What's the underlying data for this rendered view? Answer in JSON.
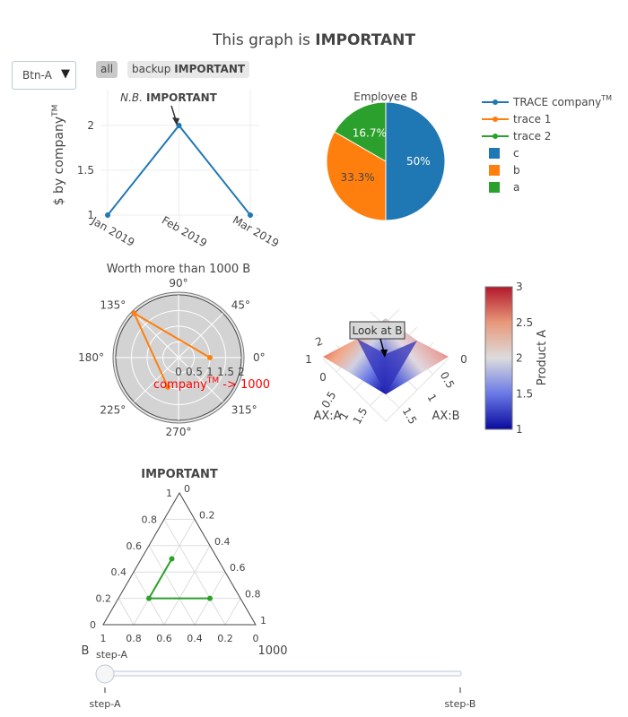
{
  "title": {
    "prefix": "This graph is ",
    "bold": "IMPORTANT"
  },
  "controls": {
    "dropdown_label": "Btn-A",
    "dropdown_arrow": "▼",
    "button_all": "all",
    "button_backup_prefix": "backup ",
    "button_backup_bold": "IMPORTANT"
  },
  "legend": {
    "items": [
      {
        "name": "TRACE company",
        "sup": "TM",
        "kind": "line",
        "color": "#1f77b4"
      },
      {
        "name": "trace 1",
        "kind": "line",
        "color": "#ff7f0e"
      },
      {
        "name": "trace 2",
        "kind": "line",
        "color": "#2ca02c"
      },
      {
        "name": "c",
        "kind": "square",
        "color": "#1f77b4"
      },
      {
        "name": "b",
        "kind": "square",
        "color": "#ff7f0e"
      },
      {
        "name": "a",
        "kind": "square",
        "color": "#2ca02c"
      }
    ]
  },
  "colors": {
    "blue": "#1f77b4",
    "orange": "#ff7f0e",
    "green": "#2ca02c",
    "red_annotation": "#ff0000"
  },
  "slider": {
    "steps": [
      "step-A",
      "step-B"
    ],
    "current_label": "step-A",
    "active_index": 0
  },
  "chart_data": [
    {
      "type": "line",
      "x": [
        "Jan 2019",
        "Feb 2019",
        "Mar 2019"
      ],
      "y": [
        1,
        2,
        1
      ],
      "ylabel": "$ by company",
      "ylabel_sup": "TM",
      "ylim": [
        0.9,
        2.4
      ],
      "yticks": [
        1,
        1.5,
        2
      ],
      "ytick_labels": [
        "1",
        "1.5",
        "2"
      ],
      "xtick_labels": [
        "Jan 2019",
        "Feb 2019",
        "Mar 2019"
      ],
      "grid": true,
      "annotation": {
        "italic": "N.B.",
        "bold": "IMPORTANT",
        "at_x": "Feb 2019",
        "at_y": 2
      }
    },
    {
      "type": "pie",
      "title": "Employee B",
      "labels": [
        "c",
        "b",
        "a"
      ],
      "values": [
        3,
        2,
        1
      ],
      "percent_labels": [
        "50%",
        "33.3%",
        "16.7%"
      ]
    },
    {
      "type": "polar",
      "title": "Worth more than 1000 B",
      "r": [
        1,
        2,
        1
      ],
      "theta_deg": [
        0,
        135,
        250
      ],
      "angular_ticks": [
        "0°",
        "45°",
        "90°",
        "135°",
        "180°",
        "225°",
        "270°",
        "315°"
      ],
      "radial_ticks": [
        "0",
        "0.5",
        "1",
        "1.5",
        "2"
      ],
      "radial_range": [
        0,
        2
      ],
      "annotation": {
        "text": "company",
        "sup": "TM",
        "suffix": " -> 1000"
      }
    },
    {
      "type": "surface",
      "z": [
        [
          1,
          2,
          1
        ],
        [
          2,
          1,
          2
        ],
        [
          3,
          2,
          3
        ]
      ],
      "xaxis_title": "AX:A",
      "yaxis_title": "AX:B",
      "zaxis_title": "",
      "x_ticks": [
        "0",
        "0.5",
        "1",
        "1.5"
      ],
      "y_ticks": [
        "0",
        "0.5",
        "1",
        "1.5"
      ],
      "z_ticks": [
        "1",
        "2"
      ],
      "annotation": "Look at B",
      "colorbar": {
        "title": "Product A",
        "ticks": [
          "1",
          "1.5",
          "2",
          "2.5",
          "3"
        ],
        "range": [
          1,
          3
        ]
      }
    },
    {
      "type": "ternary",
      "title": "IMPORTANT",
      "a": [
        0.5,
        0.2,
        0.2
      ],
      "b": [
        0.3,
        0.6,
        0.2
      ],
      "c": [
        0.2,
        0.2,
        0.6
      ],
      "ticks": [
        "0",
        "0.2",
        "0.4",
        "0.6",
        "0.8",
        "1"
      ],
      "baxis_title": "B",
      "caxis_title": "1000"
    }
  ]
}
